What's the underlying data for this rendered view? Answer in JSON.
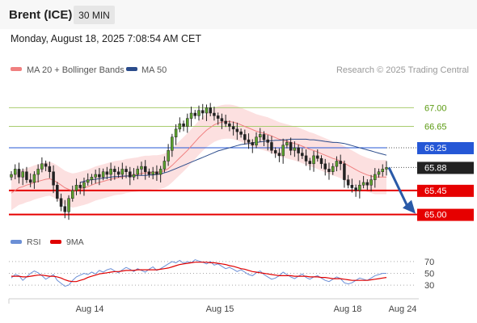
{
  "header": {
    "instrument": "Brent (ICE)",
    "timeframe": "30 MIN",
    "datetime": "Monday, August 18, 2025 7:08:54 AM CET"
  },
  "legend": {
    "ma20": {
      "label": "MA 20 + Bollinger Bands",
      "color": "#f08080"
    },
    "ma50": {
      "label": "MA 50",
      "color": "#2b4c8c"
    }
  },
  "credit": "Research © 2025 Trading Central",
  "rsi_legend": {
    "rsi": {
      "label": "RSI",
      "color": "#6b8fd6"
    },
    "ma9": {
      "label": "9MA",
      "color": "#e00000"
    }
  },
  "chart_data": [
    {
      "type": "candlestick",
      "title": "Brent (ICE) 30 MIN",
      "x_ticks": [
        "Aug 14",
        "Aug 15",
        "Aug 18",
        "Aug 24"
      ],
      "y_range": [
        64.6,
        67.4
      ],
      "levels": [
        {
          "label": "67.00",
          "value": 67.0,
          "kind": "target",
          "color": "#a8cc6e"
        },
        {
          "label": "66.65",
          "value": 66.65,
          "kind": "target",
          "color": "#a8cc6e"
        },
        {
          "label": "66.25",
          "value": 66.25,
          "kind": "pivot",
          "color": "#2557d6"
        },
        {
          "label": "65.88",
          "value": 65.88,
          "kind": "last",
          "color": "#222222"
        },
        {
          "label": "65.45",
          "value": 65.45,
          "kind": "support",
          "color": "#e60000"
        },
        {
          "label": "65.00",
          "value": 65.0,
          "kind": "support",
          "color": "#e60000"
        }
      ],
      "forecast": {
        "from": 65.88,
        "to": 65.0,
        "color": "#2a5aa8"
      },
      "close": [
        65.75,
        65.85,
        65.7,
        65.8,
        65.65,
        65.6,
        65.75,
        65.85,
        65.95,
        65.9,
        65.8,
        65.55,
        65.3,
        65.15,
        65.05,
        65.3,
        65.45,
        65.55,
        65.5,
        65.6,
        65.65,
        65.7,
        65.75,
        65.7,
        65.8,
        65.75,
        65.85,
        65.8,
        65.75,
        65.85,
        65.8,
        65.7,
        65.75,
        65.85,
        65.9,
        65.8,
        65.75,
        65.8,
        65.75,
        65.85,
        66.0,
        66.2,
        66.45,
        66.6,
        66.7,
        66.65,
        66.8,
        66.9,
        66.85,
        66.95,
        66.9,
        67.0,
        66.9,
        66.85,
        66.8,
        66.75,
        66.7,
        66.65,
        66.6,
        66.55,
        66.5,
        66.4,
        66.35,
        66.3,
        66.45,
        66.5,
        66.4,
        66.35,
        66.2,
        66.15,
        66.1,
        66.3,
        66.35,
        66.2,
        66.25,
        66.15,
        66.1,
        66.0,
        65.95,
        66.1,
        66.05,
        65.95,
        65.85,
        65.8,
        65.9,
        66.0,
        65.95,
        65.65,
        65.55,
        65.5,
        65.45,
        65.55,
        65.6,
        65.55,
        65.65,
        65.75,
        65.8,
        65.85,
        65.88
      ],
      "ma20": [
        65.4,
        65.45,
        65.5,
        65.52,
        65.55,
        65.57,
        65.6,
        65.62,
        65.64,
        65.66,
        65.67,
        65.64,
        65.6,
        65.55,
        65.5,
        65.47,
        65.45,
        65.46,
        65.48,
        65.5,
        65.52,
        65.55,
        65.58,
        65.6,
        65.62,
        65.64,
        65.66,
        65.68,
        65.69,
        65.7,
        65.72,
        65.73,
        65.74,
        65.75,
        65.77,
        65.78,
        65.78,
        65.79,
        65.79,
        65.8,
        65.82,
        65.86,
        65.92,
        65.99,
        66.06,
        66.13,
        66.2,
        66.28,
        66.36,
        66.44,
        66.51,
        66.58,
        66.63,
        66.68,
        66.71,
        66.73,
        66.74,
        66.74,
        66.73,
        66.71,
        66.68,
        66.65,
        66.62,
        66.59,
        66.56,
        66.54,
        66.52,
        66.5,
        66.47,
        66.44,
        66.41,
        66.39,
        66.37,
        66.35,
        66.33,
        66.31,
        66.28,
        66.25,
        66.22,
        66.2,
        66.17,
        66.14,
        66.11,
        66.08,
        66.05,
        66.03,
        66.0,
        65.96,
        65.92,
        65.88,
        65.84,
        65.8,
        65.77,
        65.74,
        65.72,
        65.7,
        65.7,
        65.7,
        65.7
      ],
      "ma50": [
        null,
        null,
        null,
        null,
        null,
        null,
        null,
        null,
        null,
        null,
        null,
        null,
        null,
        null,
        null,
        null,
        null,
        null,
        65.6,
        65.62,
        65.64,
        65.65,
        65.66,
        65.67,
        65.68,
        65.69,
        65.7,
        65.71,
        65.71,
        65.72,
        65.72,
        65.72,
        65.72,
        65.73,
        65.73,
        65.73,
        65.74,
        65.74,
        65.75,
        65.76,
        65.78,
        65.8,
        65.83,
        65.86,
        65.89,
        65.92,
        65.95,
        65.98,
        66.01,
        66.04,
        66.07,
        66.1,
        66.13,
        66.16,
        66.19,
        66.21,
        66.23,
        66.25,
        66.27,
        66.29,
        66.31,
        66.32,
        66.33,
        66.34,
        66.35,
        66.36,
        66.37,
        66.38,
        66.38,
        66.39,
        66.39,
        66.4,
        66.4,
        66.41,
        66.41,
        66.41,
        66.41,
        66.41,
        66.4,
        66.4,
        66.39,
        66.38,
        66.37,
        66.36,
        66.35,
        66.35,
        66.34,
        66.33,
        66.31,
        66.29,
        66.27,
        66.25,
        66.23,
        66.21,
        66.19,
        66.17,
        66.15,
        66.13,
        66.11
      ]
    },
    {
      "type": "line",
      "title": "RSI",
      "y_ticks": [
        70,
        50,
        30
      ],
      "y_range": [
        15,
        85
      ],
      "series": [
        {
          "name": "RSI",
          "color": "#6b8fd6",
          "values": [
            42,
            48,
            46,
            38,
            44,
            50,
            54,
            51,
            46,
            40,
            44,
            48,
            38,
            33,
            28,
            30,
            38,
            44,
            47,
            50,
            48,
            52,
            49,
            55,
            52,
            56,
            58,
            54,
            51,
            56,
            60,
            57,
            53,
            58,
            55,
            52,
            57,
            61,
            55,
            58,
            62,
            66,
            70,
            68,
            72,
            67,
            70,
            68,
            73,
            71,
            69,
            66,
            70,
            64,
            66,
            62,
            58,
            60,
            57,
            53,
            56,
            52,
            48,
            46,
            51,
            54,
            48,
            44,
            40,
            42,
            46,
            52,
            48,
            44,
            41,
            45,
            49,
            43,
            40,
            44,
            46,
            42,
            38,
            36,
            40,
            44,
            41,
            34,
            32,
            34,
            38,
            42,
            40,
            38,
            42,
            46,
            48,
            50,
            50
          ]
        },
        {
          "name": "9MA",
          "color": "#e00000",
          "values": [
            45,
            45,
            45,
            44,
            44,
            45,
            46,
            47,
            47,
            46,
            45,
            45,
            44,
            42,
            39,
            37,
            36,
            36,
            38,
            40,
            43,
            45,
            47,
            49,
            50,
            51,
            52,
            53,
            53,
            54,
            55,
            55,
            55,
            56,
            56,
            56,
            56,
            56,
            56,
            57,
            58,
            59,
            61,
            63,
            65,
            66,
            67,
            68,
            69,
            69,
            69,
            69,
            68,
            68,
            67,
            66,
            65,
            63,
            62,
            60,
            58,
            57,
            55,
            53,
            52,
            51,
            50,
            49,
            48,
            47,
            46,
            46,
            46,
            46,
            45,
            45,
            45,
            45,
            44,
            44,
            44,
            43,
            43,
            42,
            41,
            41,
            41,
            40,
            39,
            38,
            38,
            38,
            38,
            38,
            39,
            40,
            41,
            42,
            43
          ]
        }
      ]
    }
  ]
}
